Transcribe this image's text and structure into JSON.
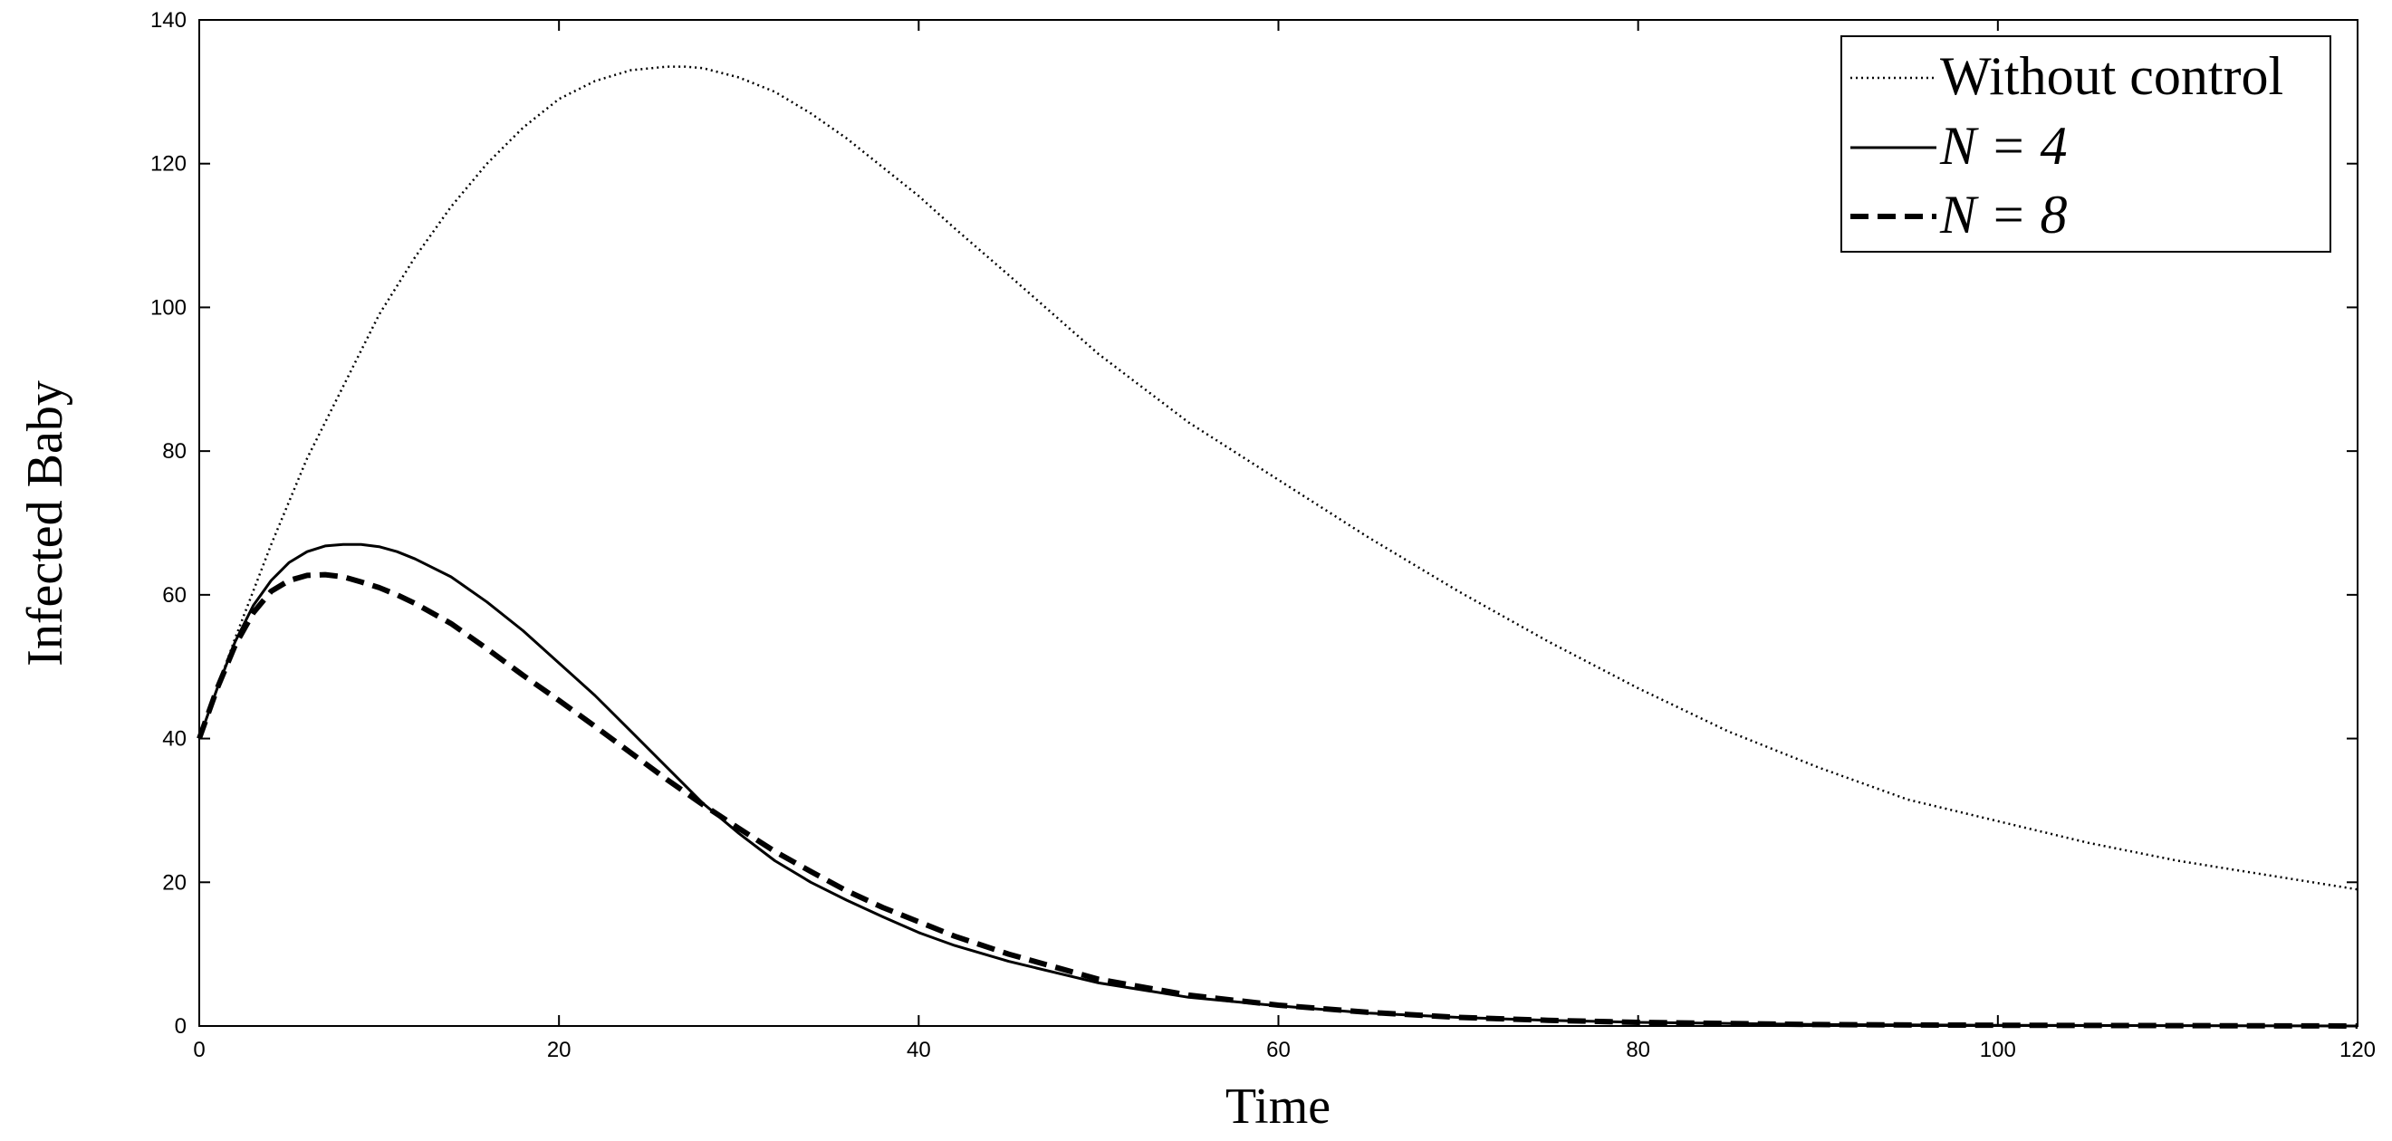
{
  "chart_data": {
    "type": "line",
    "title": "",
    "xlabel": "Time",
    "ylabel": "Infected Baby",
    "xlim": [
      0,
      120
    ],
    "ylim": [
      0,
      140
    ],
    "xticks": [
      0,
      20,
      40,
      60,
      80,
      100,
      120
    ],
    "yticks": [
      0,
      20,
      40,
      60,
      80,
      100,
      120,
      140
    ],
    "xtick_labels": [
      "0",
      "20",
      "40",
      "60",
      "80",
      "100",
      "120"
    ],
    "ytick_labels": [
      "0",
      "20",
      "40",
      "60",
      "80",
      "100",
      "120",
      "140"
    ],
    "grid": false,
    "legend_position": "top-right",
    "series": [
      {
        "name": "Without control",
        "style": "dotted",
        "x": [
          0,
          2,
          4,
          6,
          8,
          10,
          12,
          14,
          16,
          18,
          20,
          22,
          24,
          26,
          27,
          28,
          30,
          32,
          34,
          36,
          38,
          40,
          42,
          45,
          50,
          55,
          60,
          65,
          70,
          75,
          80,
          85,
          90,
          95,
          100,
          105,
          110,
          115,
          120
        ],
        "y": [
          40,
          54,
          67,
          79,
          89,
          99,
          107,
          114,
          120,
          125,
          129,
          131.5,
          133,
          133.5,
          133.5,
          133.3,
          132,
          130,
          127,
          123.5,
          119.5,
          115.5,
          111,
          104.5,
          93.5,
          84,
          76,
          68,
          60.5,
          53.5,
          47,
          41,
          36,
          31.5,
          28.5,
          25.5,
          23,
          21,
          19
        ]
      },
      {
        "name": "N = 4",
        "style": "solid",
        "x": [
          0,
          1,
          2,
          3,
          4,
          5,
          6,
          7,
          8,
          9,
          10,
          11,
          12,
          14,
          16,
          18,
          20,
          22,
          24,
          26,
          28,
          30,
          32,
          34,
          36,
          38,
          40,
          42,
          45,
          50,
          55,
          60,
          65,
          70,
          75,
          80,
          90,
          100,
          110,
          120
        ],
        "y": [
          40,
          47,
          53.5,
          58.5,
          62,
          64.5,
          66,
          66.8,
          67,
          67,
          66.7,
          66,
          65,
          62.5,
          59,
          55,
          50.5,
          46,
          41,
          36,
          31,
          26.8,
          23,
          20,
          17.5,
          15.2,
          13,
          11.2,
          9,
          6,
          4,
          2.8,
          1.8,
          1.2,
          0.8,
          0.5,
          0.2,
          0.1,
          0.05,
          0
        ]
      },
      {
        "name": "N = 8",
        "style": "dashed",
        "x": [
          0,
          1,
          2,
          3,
          4,
          5,
          6,
          7,
          8,
          9,
          10,
          11,
          12,
          14,
          16,
          18,
          20,
          22,
          24,
          26,
          28,
          30,
          32,
          34,
          36,
          38,
          40,
          42,
          45,
          50,
          55,
          60,
          65,
          70,
          75,
          80,
          90,
          100,
          110,
          120
        ],
        "y": [
          40,
          47,
          53,
          57.5,
          60.5,
          62,
          62.7,
          62.8,
          62.5,
          61.8,
          61,
          60,
          58.8,
          56,
          52.5,
          48.8,
          45.3,
          41.7,
          38,
          34.3,
          30.8,
          27.5,
          24.3,
          21.5,
          18.8,
          16.5,
          14.5,
          12.5,
          10,
          6.5,
          4.3,
          2.9,
          1.9,
          1.2,
          0.8,
          0.5,
          0.2,
          0.1,
          0.05,
          0
        ]
      }
    ]
  },
  "legend": {
    "items": [
      {
        "label": "Without control",
        "style": "dotted"
      },
      {
        "label": "N = 4",
        "style": "solid"
      },
      {
        "label": "N = 8",
        "style": "dashed"
      }
    ]
  },
  "colors": {
    "line": "#000000",
    "background": "#ffffff"
  }
}
